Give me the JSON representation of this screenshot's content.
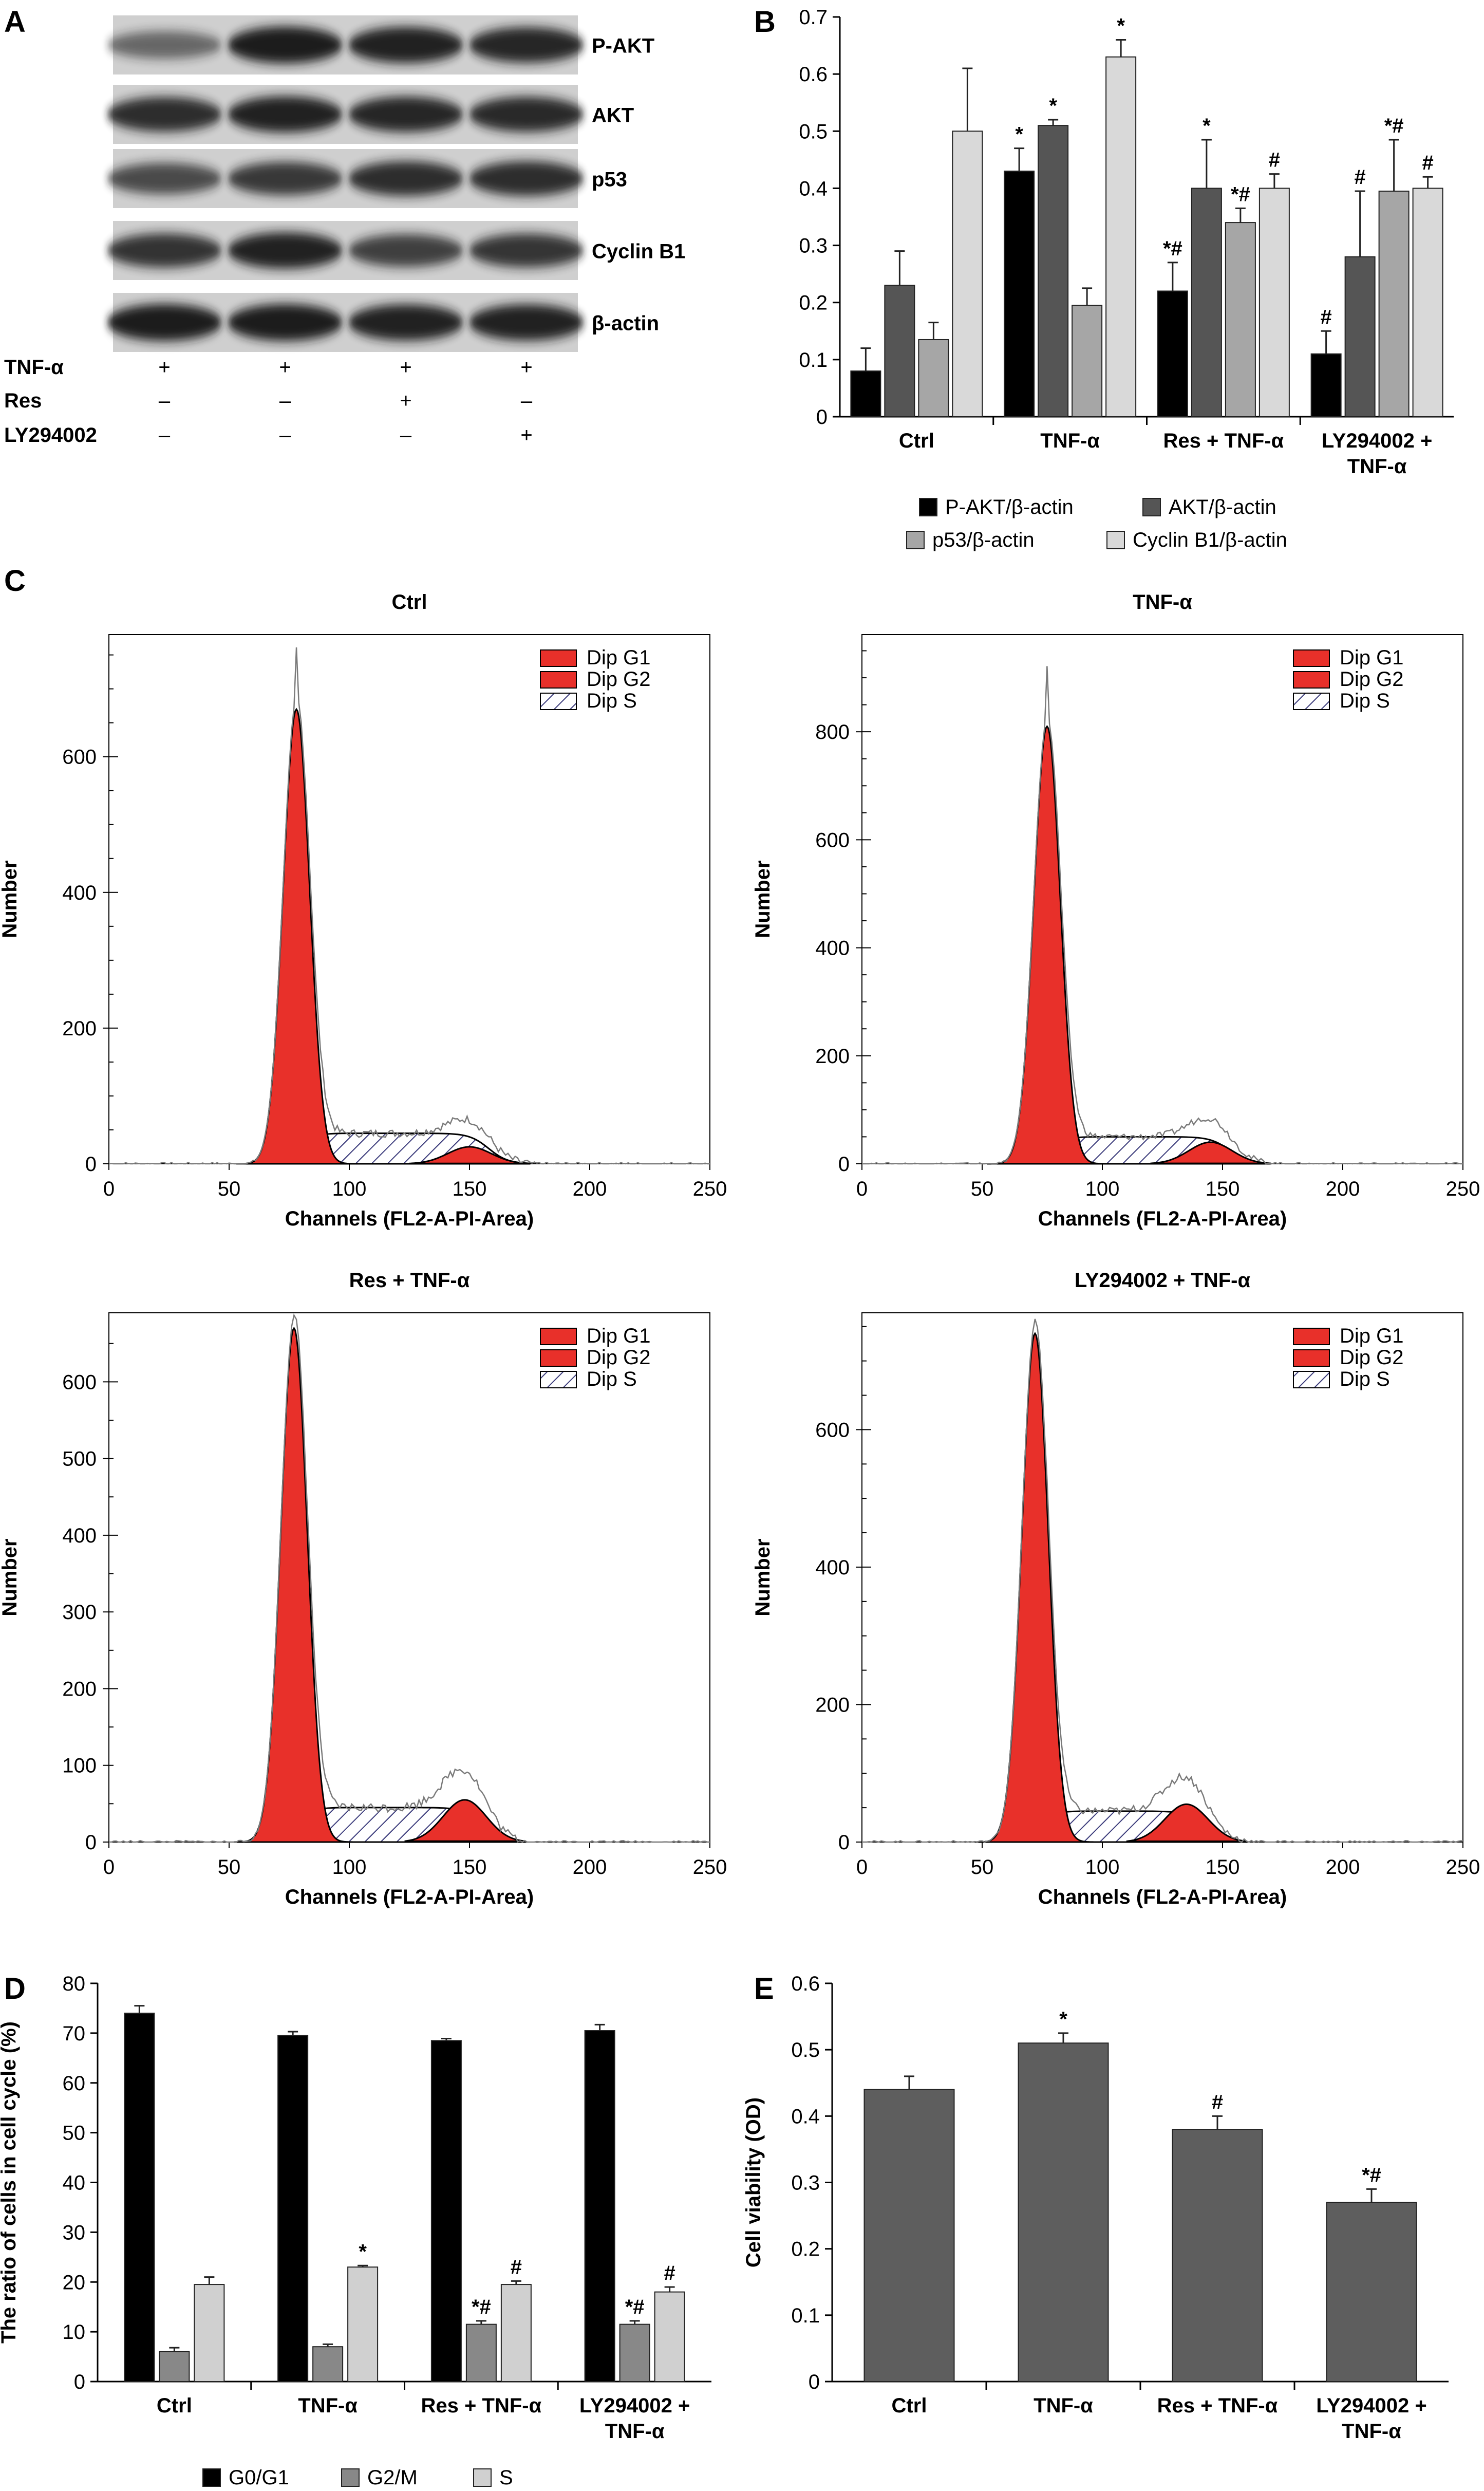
{
  "panel_labels": [
    "A",
    "B",
    "C",
    "D",
    "E"
  ],
  "blot": {
    "bands": [
      "P-AKT",
      "AKT",
      "p53",
      "Cyclin B1",
      "β-actin"
    ],
    "treatments": [
      {
        "name": "TNF-α",
        "marks": [
          "+",
          "+",
          "+",
          "+"
        ]
      },
      {
        "name": "Res",
        "marks": [
          "–",
          "–",
          "+",
          "–"
        ]
      },
      {
        "name": "LY294002",
        "marks": [
          "–",
          "–",
          "–",
          "+"
        ]
      }
    ]
  },
  "chart_data": [
    {
      "panel": "B",
      "type": "bar",
      "categories": [
        "Ctrl",
        "TNF-α",
        "Res + TNF-α",
        "LY294002 + TNF-α"
      ],
      "ylim": [
        0,
        0.7
      ],
      "yticks": [
        "0",
        "0.1",
        "0.2",
        "0.3",
        "0.4",
        "0.5",
        "0.6",
        "0.7"
      ],
      "series": [
        {
          "name": "P-AKT/β-actin",
          "color": "#000000",
          "values": [
            0.08,
            0.43,
            0.22,
            0.11
          ],
          "errors": [
            0.04,
            0.04,
            0.05,
            0.04
          ],
          "marks": [
            "",
            "*",
            "*#",
            "#"
          ]
        },
        {
          "name": "AKT/β-actin",
          "color": "#555555",
          "values": [
            0.23,
            0.51,
            0.4,
            0.28
          ],
          "errors": [
            0.06,
            0.01,
            0.085,
            0.115
          ],
          "marks": [
            "",
            "*",
            "*",
            "#"
          ]
        },
        {
          "name": "p53/β-actin",
          "color": "#a6a6a6",
          "values": [
            0.135,
            0.195,
            0.34,
            0.395
          ],
          "errors": [
            0.03,
            0.03,
            0.025,
            0.09
          ],
          "marks": [
            "",
            "",
            "*#",
            "*#"
          ]
        },
        {
          "name": "Cyclin B1/β-actin",
          "color": "#d9d9d9",
          "values": [
            0.5,
            0.63,
            0.4,
            0.4
          ],
          "errors": [
            0.11,
            0.03,
            0.025,
            0.02
          ],
          "marks": [
            "",
            "*",
            "#",
            "#"
          ]
        }
      ]
    },
    {
      "panel": "C",
      "type": "area",
      "legend": [
        "Dip G1",
        "Dip G2",
        "Dip S"
      ],
      "xlabel": "Channels (FL2-A-PI-Area)",
      "ylabel": "Number",
      "xticks": [
        "0",
        "50",
        "100",
        "150",
        "200",
        "250"
      ],
      "plots": [
        {
          "title": "Ctrl",
          "ymax": 780,
          "yticks": [
            0,
            200,
            400,
            600
          ],
          "g1_peak": 78,
          "g1_height": 670,
          "g2_peak": 150,
          "g2_height": 25,
          "s_level": 45,
          "noise_peak": 760
        },
        {
          "title": "TNF-α",
          "ymax": 980,
          "yticks": [
            0,
            200,
            400,
            600,
            800
          ],
          "g1_peak": 77,
          "g1_height": 810,
          "g2_peak": 145,
          "g2_height": 40,
          "s_level": 50,
          "noise_peak": 920
        },
        {
          "title": "Res + TNF-α",
          "ymax": 690,
          "yticks": [
            0,
            100,
            200,
            300,
            400,
            500,
            600
          ],
          "g1_peak": 77,
          "g1_height": 670,
          "g2_peak": 148,
          "g2_height": 55,
          "s_level": 45,
          "noise_peak": 685
        },
        {
          "title": "LY294002 + TNF-α",
          "ymax": 770,
          "yticks": [
            0,
            200,
            400,
            600
          ],
          "g1_peak": 72,
          "g1_height": 740,
          "g2_peak": 135,
          "g2_height": 55,
          "s_level": 45,
          "noise_peak": 760
        }
      ]
    },
    {
      "panel": "D",
      "type": "bar",
      "categories": [
        "Ctrl",
        "TNF-α",
        "Res + TNF-α",
        "LY294002 + TNF-α"
      ],
      "ylabel": "The ratio of cells in cell cycle (%)",
      "ylim": [
        0,
        80
      ],
      "yticks": [
        "0",
        "10",
        "20",
        "30",
        "40",
        "50",
        "60",
        "70",
        "80"
      ],
      "series": [
        {
          "name": "G0/G1",
          "color": "#000000",
          "values": [
            74,
            69.5,
            68.5,
            70.5
          ],
          "errors": [
            1.5,
            0.8,
            0.4,
            1.2
          ],
          "marks": [
            "",
            "",
            "",
            ""
          ]
        },
        {
          "name": "G2/M",
          "color": "#888888",
          "values": [
            6,
            7,
            11.5,
            11.5
          ],
          "errors": [
            0.8,
            0.5,
            0.7,
            0.7
          ],
          "marks": [
            "",
            "",
            "*#",
            "*#"
          ]
        },
        {
          "name": "S",
          "color": "#d0d0d0",
          "values": [
            19.5,
            23,
            19.5,
            18
          ],
          "errors": [
            1.5,
            0.3,
            0.7,
            1.0
          ],
          "marks": [
            "",
            "*",
            "#",
            "#"
          ]
        }
      ]
    },
    {
      "panel": "E",
      "type": "bar",
      "categories": [
        "Ctrl",
        "TNF-α",
        "Res + TNF-α",
        "LY294002 + TNF-α"
      ],
      "ylabel": "Cell viability (OD)",
      "ylim": [
        0,
        0.6
      ],
      "yticks": [
        "0",
        "0.1",
        "0.2",
        "0.3",
        "0.4",
        "0.5",
        "0.6"
      ],
      "series": [
        {
          "name": "Cell viability",
          "color": "#5e5e5e",
          "values": [
            0.44,
            0.51,
            0.38,
            0.27
          ],
          "errors": [
            0.02,
            0.015,
            0.02,
            0.02
          ],
          "marks": [
            "",
            "*",
            "#",
            "*#"
          ]
        }
      ]
    }
  ]
}
